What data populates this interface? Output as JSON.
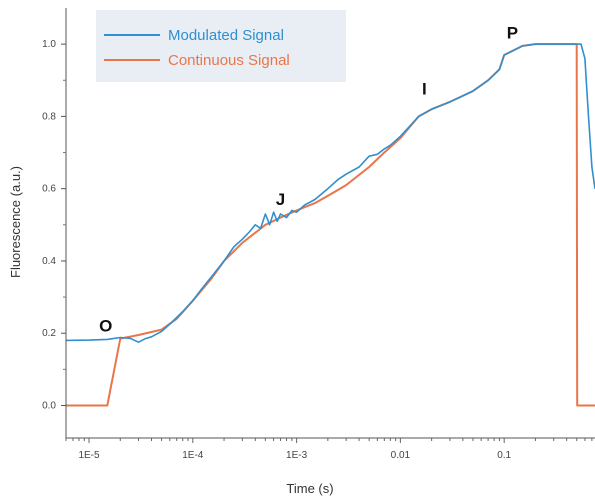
{
  "chart_data": {
    "type": "line",
    "xlabel": "Time (s)",
    "ylabel": "Fluorescence (a.u.)",
    "x_scale": "log",
    "xlim": [
      6e-06,
      0.75
    ],
    "ylim": [
      -0.09,
      1.1
    ],
    "x_ticks": [
      {
        "value": 1e-05,
        "label": "1E-5"
      },
      {
        "value": 0.0001,
        "label": "1E-4"
      },
      {
        "value": 0.001,
        "label": "1E-3"
      },
      {
        "value": 0.01,
        "label": "0.01"
      },
      {
        "value": 0.1,
        "label": "0.1"
      }
    ],
    "y_ticks": [
      {
        "value": 0.0,
        "label": "0.0"
      },
      {
        "value": 0.2,
        "label": "0.2"
      },
      {
        "value": 0.4,
        "label": "0.4"
      },
      {
        "value": 0.6,
        "label": "0.6"
      },
      {
        "value": 0.8,
        "label": "0.8"
      },
      {
        "value": 1.0,
        "label": "1.0"
      }
    ],
    "legend_position": "top-left",
    "series": [
      {
        "name": "Modulated Signal",
        "color": "#2f8fd0",
        "x": [
          6e-06,
          1e-05,
          1.5e-05,
          2e-05,
          2.5e-05,
          3e-05,
          3.5e-05,
          4e-05,
          5e-05,
          6e-05,
          8e-05,
          0.0001,
          0.00012,
          0.00015,
          0.0002,
          0.00025,
          0.0003,
          0.00035,
          0.0004,
          0.00045,
          0.0005,
          0.00055,
          0.0006,
          0.00065,
          0.0007,
          0.0008,
          0.0009,
          0.001,
          0.0012,
          0.0015,
          0.002,
          0.0025,
          0.003,
          0.004,
          0.005,
          0.006,
          0.007,
          0.008,
          0.01,
          0.015,
          0.02,
          0.03,
          0.05,
          0.07,
          0.09,
          0.1,
          0.15,
          0.2,
          0.3,
          0.4,
          0.5,
          0.55,
          0.6,
          0.65,
          0.7,
          0.75
        ],
        "y": [
          0.18,
          0.181,
          0.183,
          0.188,
          0.186,
          0.175,
          0.185,
          0.19,
          0.205,
          0.225,
          0.26,
          0.29,
          0.32,
          0.355,
          0.4,
          0.44,
          0.46,
          0.48,
          0.5,
          0.49,
          0.53,
          0.5,
          0.535,
          0.51,
          0.53,
          0.52,
          0.54,
          0.535,
          0.555,
          0.57,
          0.6,
          0.625,
          0.64,
          0.66,
          0.69,
          0.695,
          0.71,
          0.72,
          0.745,
          0.8,
          0.82,
          0.84,
          0.87,
          0.9,
          0.93,
          0.97,
          0.995,
          1.0,
          1.0,
          1.0,
          1.0,
          1.0,
          0.96,
          0.8,
          0.66,
          0.6
        ]
      },
      {
        "name": "Continuous Signal",
        "color": "#e8764a",
        "x": [
          6e-06,
          1.5e-05,
          2e-05,
          3e-05,
          5e-05,
          7e-05,
          0.0001,
          0.00015,
          0.0002,
          0.0003,
          0.0005,
          0.0007,
          0.001,
          0.0015,
          0.002,
          0.003,
          0.005,
          0.007,
          0.01,
          0.015,
          0.02,
          0.03,
          0.05,
          0.07,
          0.09,
          0.1,
          0.15,
          0.2,
          0.3,
          0.4,
          0.5,
          0.505,
          0.52,
          0.6,
          0.7,
          0.75
        ],
        "y": [
          0.0,
          0.0,
          0.185,
          0.195,
          0.21,
          0.24,
          0.29,
          0.35,
          0.4,
          0.45,
          0.5,
          0.52,
          0.54,
          0.56,
          0.58,
          0.61,
          0.66,
          0.7,
          0.74,
          0.8,
          0.82,
          0.84,
          0.87,
          0.9,
          0.93,
          0.97,
          0.995,
          1.0,
          1.0,
          1.0,
          1.0,
          0.0,
          0.0,
          0.0,
          0.0,
          0.0
        ]
      }
    ],
    "annotations": [
      {
        "text": "O",
        "x": 1.45e-05,
        "y": 0.205
      },
      {
        "text": "J",
        "x": 0.0007,
        "y": 0.555
      },
      {
        "text": "I",
        "x": 0.017,
        "y": 0.86
      },
      {
        "text": "P",
        "x": 0.12,
        "y": 1.015
      }
    ]
  }
}
